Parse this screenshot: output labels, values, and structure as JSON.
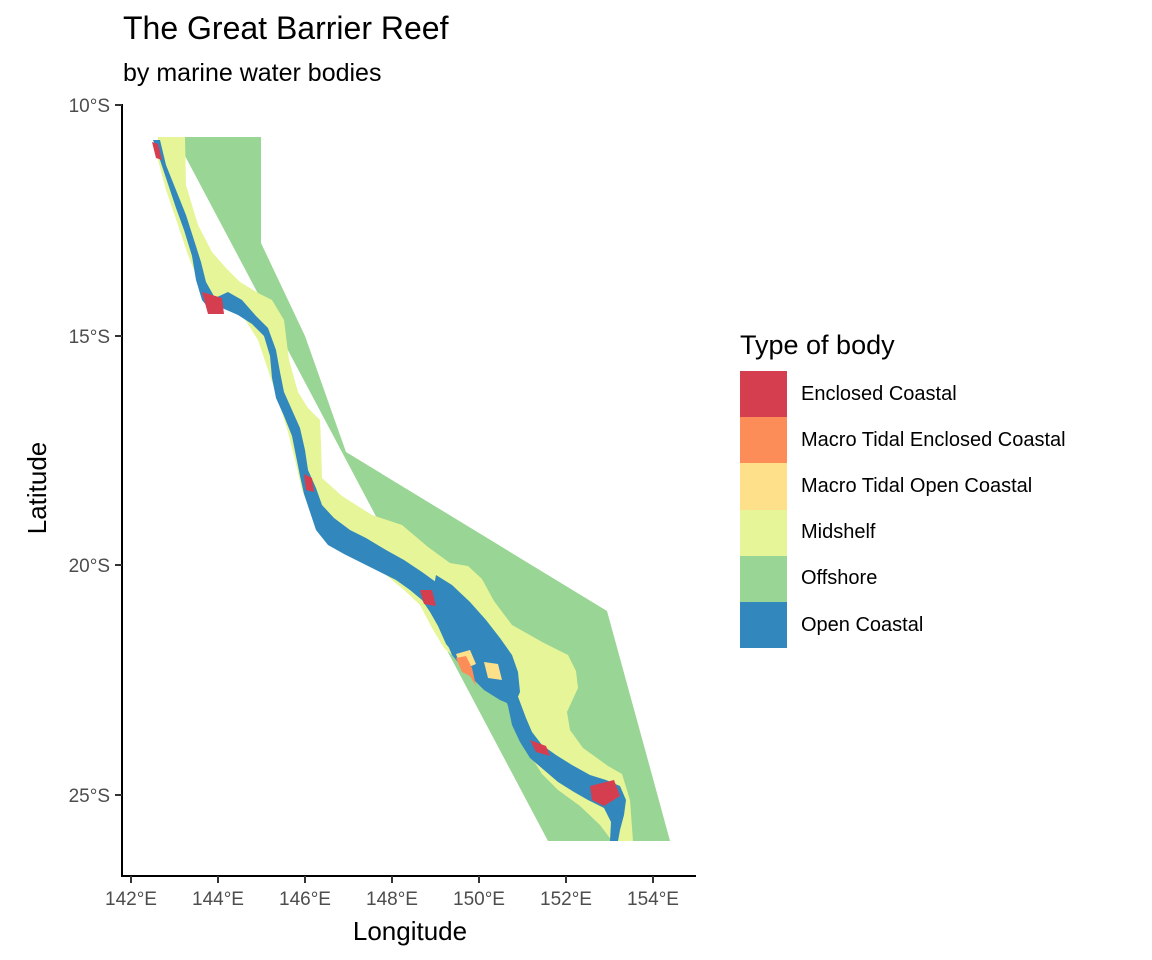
{
  "title": "The Great Barrier Reef",
  "subtitle": "by marine water bodies",
  "axes": {
    "xlabel": "Longitude",
    "ylabel": "Latitude",
    "x_ticks": [
      "142°E",
      "144°E",
      "146°E",
      "148°E",
      "150°E",
      "152°E",
      "154°E"
    ],
    "y_ticks": [
      "10°S",
      "15°S",
      "20°S",
      "25°S"
    ]
  },
  "legend": {
    "title": "Type of body",
    "items": [
      {
        "label": "Enclosed Coastal",
        "color": "#d53e4f"
      },
      {
        "label": "Macro Tidal Enclosed Coastal",
        "color": "#fc8d59"
      },
      {
        "label": "Macro Tidal Open Coastal",
        "color": "#fee08b"
      },
      {
        "label": "Midshelf",
        "color": "#e6f598"
      },
      {
        "label": "Offshore",
        "color": "#99d594"
      },
      {
        "label": "Open Coastal",
        "color": "#3288bd"
      }
    ]
  }
}
